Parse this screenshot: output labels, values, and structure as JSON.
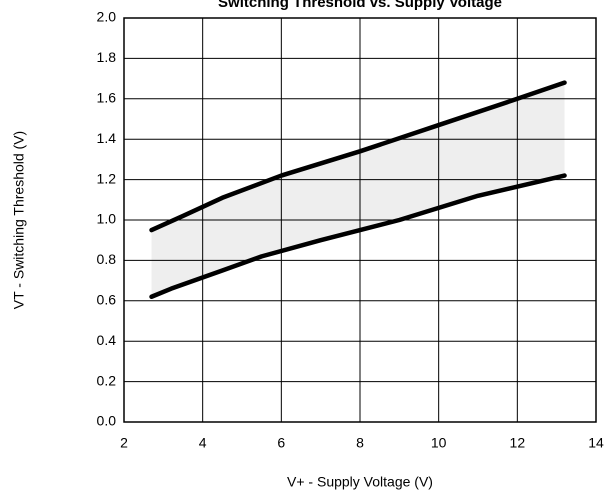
{
  "chart_data": {
    "type": "line",
    "title": "Switching Threshold vs. Supply Voltage",
    "x_label": "V+ -  Supply Voltage (V)",
    "y_label": "VT  -  Switching Threshold (V)",
    "series": [
      {
        "color": "#000000",
        "x": [
          2.7,
          3.5,
          4.5,
          6,
          8,
          10,
          12,
          13.2
        ],
        "values": [
          0.95,
          1.02,
          1.11,
          1.22,
          1.34,
          1.47,
          1.6,
          1.68
        ]
      },
      {
        "color": "#000000",
        "x": [
          2.7,
          3.2,
          4.5,
          5.5,
          7,
          9,
          11,
          13.2
        ],
        "values": [
          0.62,
          0.66,
          0.75,
          0.82,
          0.9,
          1.0,
          1.12,
          1.22
        ]
      }
    ],
    "fill_between": true,
    "fill_color": "#eeeeee",
    "xlim": [
      2,
      14
    ],
    "xticks": [
      2,
      4,
      6,
      8,
      10,
      12,
      14
    ],
    "ylim": [
      0,
      2
    ],
    "yticks": [
      {
        "value": 0,
        "label": "0.0"
      },
      {
        "value": 0.2,
        "label": "0.2"
      },
      {
        "value": 0.4,
        "label": "0.4"
      },
      {
        "value": 0.6,
        "label": "0.6"
      },
      {
        "value": 0.8,
        "label": "0.8"
      },
      {
        "value": 1,
        "label": "1.0"
      },
      {
        "value": 1.2,
        "label": "1.2"
      },
      {
        "value": 1.4,
        "label": "1.4"
      },
      {
        "value": 1.6,
        "label": "1.6"
      },
      {
        "value": 1.8,
        "label": "1.8"
      },
      {
        "value": 2,
        "label": "2.0"
      }
    ],
    "grid": true
  }
}
